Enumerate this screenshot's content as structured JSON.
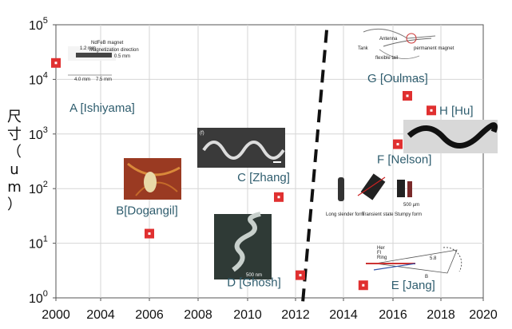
{
  "chart_data": {
    "type": "scatter",
    "title": "",
    "ylabel": "尺寸（um）",
    "xlabel": "",
    "xlim": [
      2000,
      2020
    ],
    "ylim_log10": [
      0,
      5
    ],
    "y_scale": "log",
    "x_ticks": [
      "2000",
      "2004",
      "2006",
      "2008",
      "2010",
      "2012",
      "2014",
      "2016",
      "2018",
      "2020"
    ],
    "y_tick_base": "10",
    "y_tick_exponents": [
      "0",
      "1",
      "2",
      "3",
      "4",
      "5"
    ],
    "grid": true,
    "marker_color": "#e03030",
    "annotation_color": "#2f5d6e",
    "divider_style": "dashed",
    "points": [
      {
        "x": 2000.0,
        "y": 20000,
        "label": "A [Ishiyama]"
      },
      {
        "x": 2006.0,
        "y": 15,
        "label": "B[Dogangil]"
      },
      {
        "x": 2011.3,
        "y": 70,
        "label": "C [Zhang]"
      },
      {
        "x": 2012.2,
        "y": 2.6,
        "label": "D [Ghosh]"
      },
      {
        "x": 2014.8,
        "y": 1.7,
        "label": "E [Jang]"
      },
      {
        "x": 2016.2,
        "y": 650,
        "label": "F [Nelson]"
      },
      {
        "x": 2016.6,
        "y": 5000,
        "label": "G [Oulmas]"
      },
      {
        "x": 2017.6,
        "y": 2700,
        "label": "H [Hu]"
      }
    ],
    "dashed_line": {
      "x_start": 2013.3,
      "y_start": 80000,
      "x_end": 2012.3,
      "y_end": 0.8
    },
    "inset_texts": {
      "a_1": "1.2 mm",
      "a_2": "NdFeB magnet",
      "a_3": "Magnetization direction",
      "a_4": "0.5 mm",
      "a_5": "4.0 mm",
      "a_6": "7.5 mm",
      "c_tag": "(f)",
      "d_scale": "500 nm",
      "e_1": "Long slender form",
      "e_2": "Transient state",
      "e_3": "Stumpy form",
      "e_4": "500 μm",
      "g_1": "Antenna",
      "g_2": "permanent magnet",
      "g_3": "flexible tail",
      "g_4": "Tank",
      "j_1": "Her",
      "j_2": "Fl",
      "j_3": "Ring",
      "j_4": "5.8",
      "j_5": "B"
    }
  }
}
